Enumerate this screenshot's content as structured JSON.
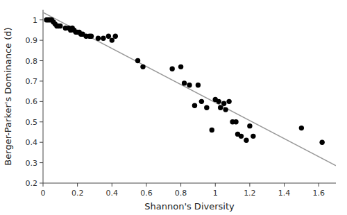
{
  "chart_data": {
    "type": "scatter",
    "xlabel": "Shannon's Diversity",
    "ylabel": "Berger-Parker's Dominance (d)",
    "grid": false,
    "xlim": [
      0,
      1.7
    ],
    "ylim": [
      0.2,
      1.05
    ],
    "xticks": [
      0,
      0.2,
      0.4,
      0.6,
      0.8,
      1,
      1.2,
      1.4,
      1.6
    ],
    "yticks": [
      0.2,
      0.3,
      0.4,
      0.5,
      0.6,
      0.7,
      0.8,
      0.9,
      1
    ],
    "series": [
      {
        "type": "scatter",
        "color": "black",
        "x": [
          0.02,
          0.03,
          0.04,
          0.05,
          0.06,
          0.07,
          0.08,
          0.09,
          0.1,
          0.13,
          0.15,
          0.16,
          0.17,
          0.18,
          0.19,
          0.2,
          0.21,
          0.22,
          0.23,
          0.25,
          0.27,
          0.28,
          0.32,
          0.35,
          0.38,
          0.4,
          0.42,
          0.55,
          0.58,
          0.75,
          0.8,
          0.82,
          0.85,
          0.88,
          0.9,
          0.92,
          0.95,
          0.98,
          1.0,
          1.02,
          1.03,
          1.05,
          1.06,
          1.08,
          1.1,
          1.12,
          1.13,
          1.15,
          1.18,
          1.2,
          1.22,
          1.5,
          1.62
        ],
        "values": [
          1.0,
          1.0,
          1.0,
          1.0,
          0.99,
          0.98,
          0.97,
          0.97,
          0.97,
          0.96,
          0.96,
          0.95,
          0.96,
          0.95,
          0.94,
          0.94,
          0.94,
          0.93,
          0.93,
          0.92,
          0.92,
          0.92,
          0.91,
          0.91,
          0.92,
          0.9,
          0.92,
          0.8,
          0.77,
          0.76,
          0.77,
          0.69,
          0.68,
          0.58,
          0.68,
          0.6,
          0.57,
          0.46,
          0.61,
          0.6,
          0.57,
          0.59,
          0.56,
          0.6,
          0.5,
          0.5,
          0.44,
          0.43,
          0.41,
          0.48,
          0.43,
          0.47,
          0.4
        ]
      },
      {
        "type": "line",
        "color": "#999999",
        "x": [
          0,
          1.7
        ],
        "values": [
          1.037,
          0.2856
        ]
      }
    ]
  }
}
